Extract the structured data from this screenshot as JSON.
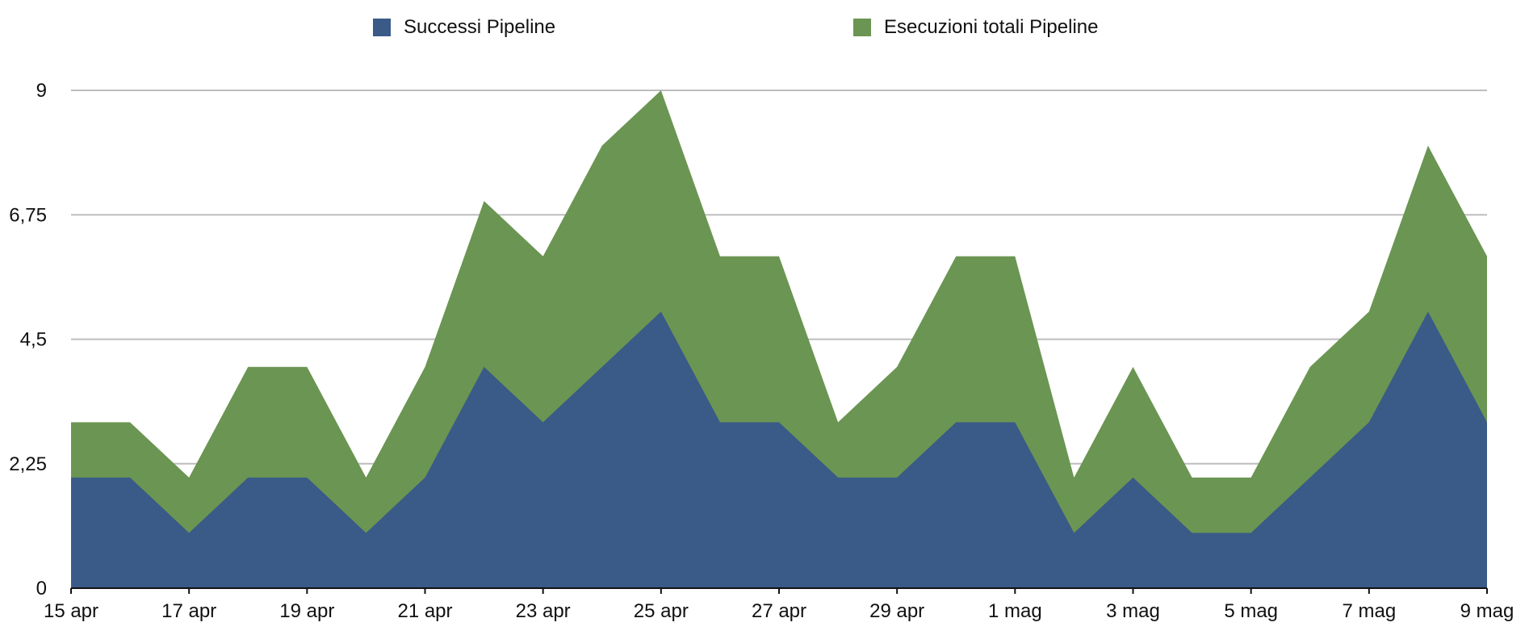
{
  "legend": {
    "items": [
      {
        "label": "Successi Pipeline",
        "color": "#3A5A87"
      },
      {
        "label": "Esecuzioni totali Pipeline",
        "color": "#6B9552"
      }
    ]
  },
  "chart_data": {
    "type": "area",
    "x": [
      "15 apr",
      "16 apr",
      "17 apr",
      "18 apr",
      "19 apr",
      "20 apr",
      "21 apr",
      "22 apr",
      "23 apr",
      "24 apr",
      "25 apr",
      "26 apr",
      "27 apr",
      "28 apr",
      "29 apr",
      "30 apr",
      "1 mag",
      "2 mag",
      "3 mag",
      "4 mag",
      "5 mag",
      "6 mag",
      "7 mag",
      "8 mag",
      "9 mag"
    ],
    "x_tick_labels": [
      "15 apr",
      "17 apr",
      "19 apr",
      "21 apr",
      "23 apr",
      "25 apr",
      "27 apr",
      "29 apr",
      "1 mag",
      "3 mag",
      "5 mag",
      "7 mag",
      "9 mag"
    ],
    "y_tick_labels": [
      "0",
      "2,25",
      "4,5",
      "6,75",
      "9"
    ],
    "ylim": [
      0,
      9
    ],
    "grid": true,
    "legend_position": "top",
    "series": [
      {
        "name": "Successi Pipeline",
        "color": "#3A5A87",
        "values": [
          2,
          2,
          1,
          2,
          2,
          1,
          2,
          4,
          3,
          4,
          5,
          3,
          3,
          2,
          2,
          3,
          3,
          1,
          2,
          1,
          1,
          2,
          3,
          5,
          3
        ]
      },
      {
        "name": "Esecuzioni totali Pipeline",
        "color": "#6B9552",
        "values": [
          3,
          3,
          2,
          4,
          4,
          2,
          4,
          7,
          6,
          8,
          9,
          6,
          6,
          3,
          4,
          6,
          6,
          2,
          4,
          2,
          2,
          4,
          5,
          8,
          6
        ]
      }
    ]
  }
}
